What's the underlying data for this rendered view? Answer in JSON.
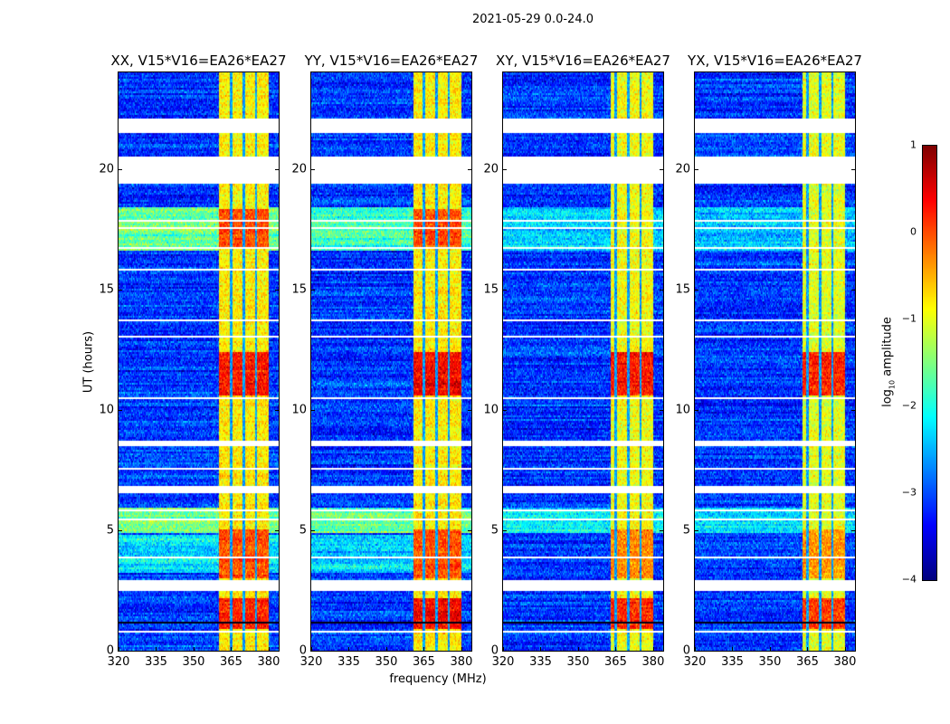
{
  "chart_data": {
    "type": "heatmap",
    "suptitle": "2021-05-29 0.0-24.0",
    "xlabel": "frequency (MHz)",
    "ylabel": "UT (hours)",
    "xlim": [
      320,
      384
    ],
    "ylim": [
      0,
      24
    ],
    "xticks": [
      "320",
      "335",
      "350",
      "365",
      "380"
    ],
    "yticks": [
      "0",
      "5",
      "10",
      "15",
      "20"
    ],
    "colorbar": {
      "label_prefix": "log",
      "label_sub": "10",
      "label_suffix": " amplitude",
      "range": [
        -4,
        1
      ],
      "ticks": [
        "1",
        "0",
        "−1",
        "−2",
        "−3",
        "−4"
      ],
      "colormap": "jet"
    },
    "background_log_amp": -3.1,
    "rfi_quiet_channels_mhz": [
      365,
      370,
      375
    ],
    "flagged_hours": [
      [
        21.43,
        22.06
      ],
      [
        19.36,
        20.49
      ],
      [
        8.45,
        8.7
      ],
      [
        6.53,
        6.83
      ],
      [
        2.5,
        2.96
      ]
    ],
    "panels": [
      {
        "title": "XX, V15*V16=EA26*EA27",
        "rfi_band_mhz": [
          360,
          380
        ],
        "rfi_base": -0.8,
        "background_segments": [
          {
            "hours": [
              16.6,
              18.4
            ],
            "level": -1.6
          },
          {
            "hours": [
              4.9,
              5.9
            ],
            "level": -1.5
          },
          {
            "hours": [
              3.2,
              4.8
            ],
            "level": -2.2
          }
        ],
        "rfi_segments": [
          {
            "hours": [
              10.6,
              12.4
            ],
            "level": 0.3
          },
          {
            "hours": [
              0.9,
              2.2
            ],
            "level": 0.2
          },
          {
            "hours": [
              3.0,
              5.0
            ],
            "level": 0.0
          },
          {
            "hours": [
              16.7,
              18.3
            ],
            "level": 0.0
          }
        ]
      },
      {
        "title": "YY, V15*V16=EA26*EA27",
        "rfi_band_mhz": [
          361,
          380
        ],
        "rfi_base": -0.8,
        "background_segments": [
          {
            "hours": [
              16.6,
              18.4
            ],
            "level": -1.8
          },
          {
            "hours": [
              4.9,
              5.9
            ],
            "level": -1.6
          },
          {
            "hours": [
              3.2,
              4.8
            ],
            "level": -2.3
          }
        ],
        "rfi_segments": [
          {
            "hours": [
              10.6,
              12.4
            ],
            "level": 0.4
          },
          {
            "hours": [
              0.9,
              2.2
            ],
            "level": 0.4
          },
          {
            "hours": [
              3.0,
              5.0
            ],
            "level": 0.0
          },
          {
            "hours": [
              16.7,
              18.3
            ],
            "level": 0.0
          }
        ]
      },
      {
        "title": "XY, V15*V16=EA26*EA27",
        "rfi_band_mhz": [
          363,
          380
        ],
        "rfi_base": -0.9,
        "background_segments": [
          {
            "hours": [
              16.6,
              18.4
            ],
            "level": -2.3
          },
          {
            "hours": [
              4.9,
              5.9
            ],
            "level": -2.2
          }
        ],
        "rfi_segments": [
          {
            "hours": [
              10.6,
              12.4
            ],
            "level": 0.3
          },
          {
            "hours": [
              0.9,
              2.2
            ],
            "level": 0.2
          },
          {
            "hours": [
              3.0,
              5.0
            ],
            "level": -0.3
          }
        ]
      },
      {
        "title": "YX, V15*V16=EA26*EA27",
        "rfi_band_mhz": [
          363,
          380
        ],
        "rfi_base": -1.0,
        "background_segments": [
          {
            "hours": [
              16.6,
              18.4
            ],
            "level": -2.4
          },
          {
            "hours": [
              4.9,
              5.9
            ],
            "level": -2.3
          }
        ],
        "rfi_segments": [
          {
            "hours": [
              10.6,
              12.4
            ],
            "level": 0.2
          },
          {
            "hours": [
              0.9,
              2.2
            ],
            "level": 0.1
          },
          {
            "hours": [
              3.0,
              5.0
            ],
            "level": -0.4
          }
        ]
      }
    ]
  }
}
